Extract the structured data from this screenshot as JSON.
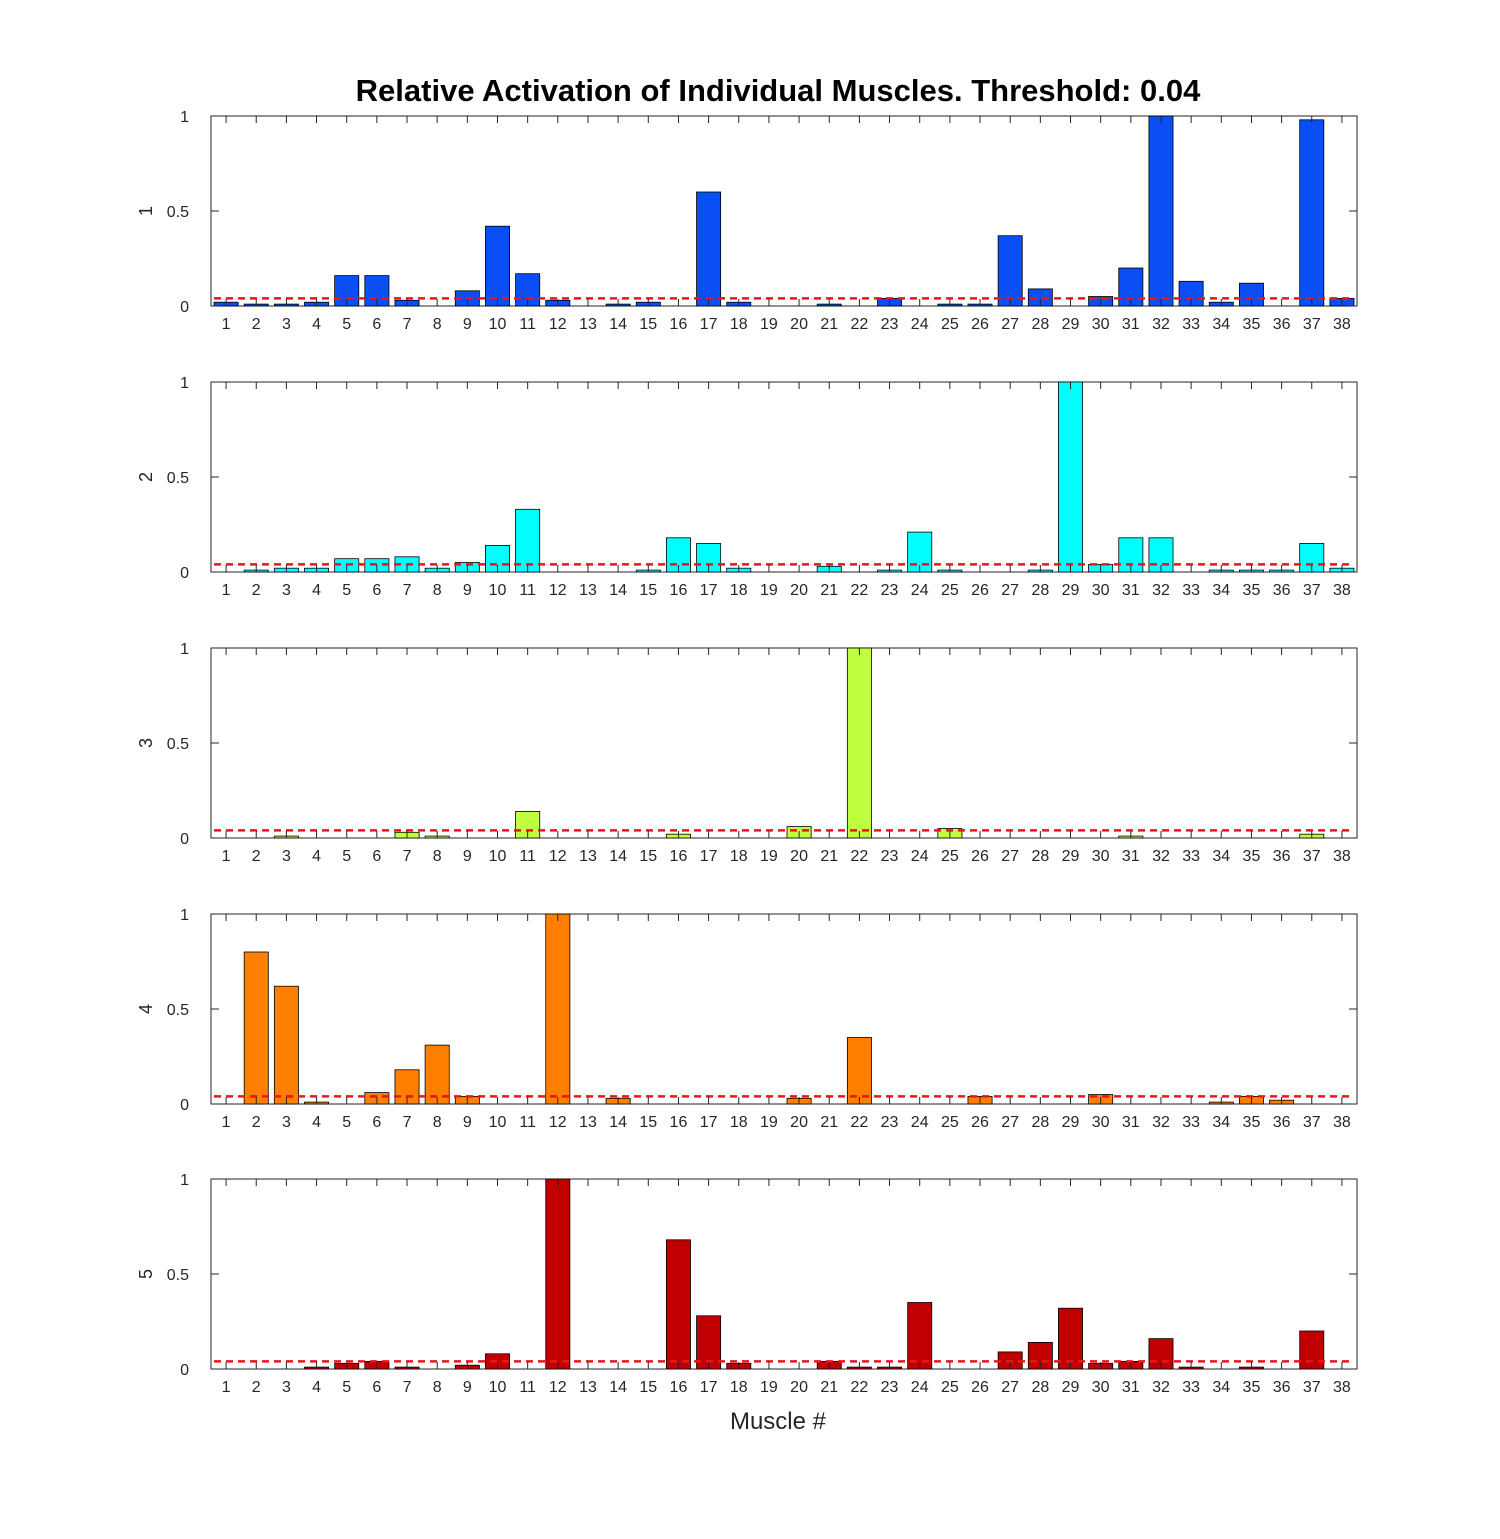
{
  "figure": {
    "title": "Relative Activation of Individual Muscles. Threshold: 0.04",
    "xlabel": "Muscle #"
  },
  "chart_data": {
    "type": "bar",
    "threshold": 0.04,
    "threshold_color": "#e8161b",
    "threshold_style": "dashed",
    "xlabel": "Muscle #",
    "ylim": [
      0,
      1
    ],
    "yticks": [
      0,
      0.5,
      1
    ],
    "ytick_labels": [
      "0",
      "0.5",
      "1"
    ],
    "grid": false,
    "categories": [
      "1",
      "2",
      "3",
      "4",
      "5",
      "6",
      "7",
      "8",
      "9",
      "10",
      "11",
      "12",
      "13",
      "14",
      "15",
      "16",
      "17",
      "18",
      "19",
      "20",
      "21",
      "22",
      "23",
      "24",
      "25",
      "26",
      "27",
      "28",
      "29",
      "30",
      "31",
      "32",
      "33",
      "34",
      "35",
      "36",
      "37",
      "38"
    ],
    "series": [
      {
        "ylabel": "1",
        "color": "#0a4ff5",
        "values": [
          0.02,
          0.01,
          0.01,
          0.02,
          0.16,
          0.16,
          0.03,
          0.0,
          0.08,
          0.42,
          0.17,
          0.03,
          0.0,
          0.01,
          0.02,
          0.0,
          0.6,
          0.02,
          0.0,
          0.0,
          0.01,
          0.0,
          0.04,
          0.0,
          0.01,
          0.01,
          0.37,
          0.09,
          0.0,
          0.05,
          0.2,
          1.0,
          0.13,
          0.02,
          0.12,
          0.0,
          0.98,
          0.04
        ]
      },
      {
        "ylabel": "2",
        "color": "#00ffff",
        "values": [
          0.0,
          0.01,
          0.02,
          0.02,
          0.07,
          0.07,
          0.08,
          0.02,
          0.05,
          0.14,
          0.33,
          0.0,
          0.0,
          0.0,
          0.01,
          0.18,
          0.15,
          0.02,
          0.0,
          0.0,
          0.03,
          0.0,
          0.01,
          0.21,
          0.01,
          0.0,
          0.0,
          0.01,
          1.0,
          0.04,
          0.18,
          0.18,
          0.0,
          0.01,
          0.01,
          0.01,
          0.15,
          0.02
        ]
      },
      {
        "ylabel": "3",
        "color": "#bfff3f",
        "values": [
          0.0,
          0.0,
          0.01,
          0.0,
          0.0,
          0.0,
          0.03,
          0.01,
          0.0,
          0.0,
          0.14,
          0.0,
          0.0,
          0.0,
          0.0,
          0.02,
          0.0,
          0.0,
          0.0,
          0.06,
          0.0,
          1.0,
          0.0,
          0.0,
          0.05,
          0.0,
          0.0,
          0.0,
          0.0,
          0.0,
          0.01,
          0.0,
          0.0,
          0.0,
          0.0,
          0.0,
          0.02,
          0.0
        ]
      },
      {
        "ylabel": "4",
        "color": "#ff8000",
        "values": [
          0.0,
          0.8,
          0.62,
          0.01,
          0.0,
          0.06,
          0.18,
          0.31,
          0.04,
          0.0,
          0.0,
          1.0,
          0.0,
          0.03,
          0.0,
          0.0,
          0.0,
          0.0,
          0.0,
          0.03,
          0.0,
          0.35,
          0.0,
          0.0,
          0.0,
          0.04,
          0.0,
          0.0,
          0.0,
          0.05,
          0.0,
          0.0,
          0.0,
          0.01,
          0.04,
          0.02,
          0.0,
          0.0
        ]
      },
      {
        "ylabel": "5",
        "color": "#c00000",
        "values": [
          0.0,
          0.0,
          0.0,
          0.01,
          0.03,
          0.04,
          0.01,
          0.0,
          0.02,
          0.08,
          0.0,
          1.0,
          0.0,
          0.0,
          0.0,
          0.68,
          0.28,
          0.03,
          0.0,
          0.0,
          0.04,
          0.01,
          0.01,
          0.35,
          0.0,
          0.0,
          0.09,
          0.14,
          0.32,
          0.03,
          0.04,
          0.16,
          0.01,
          0.0,
          0.01,
          0.0,
          0.2,
          0.0
        ]
      }
    ]
  }
}
